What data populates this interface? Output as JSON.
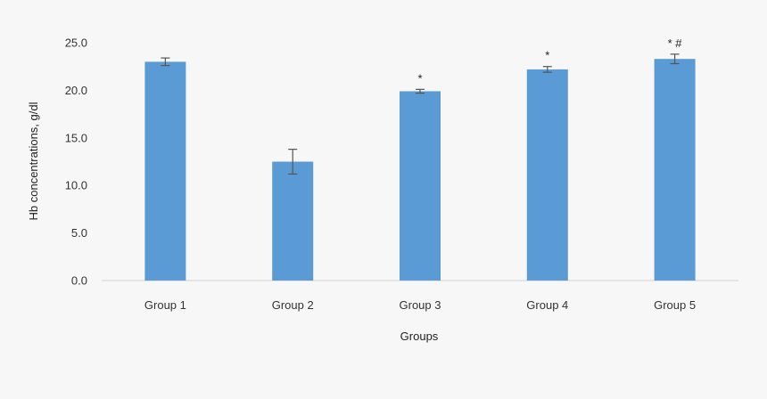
{
  "chart_data": {
    "type": "bar",
    "categories": [
      "Group 1",
      "Group 2",
      "Group 3",
      "Group 4",
      "Group 5"
    ],
    "values": [
      23.0,
      12.5,
      19.9,
      22.2,
      23.3
    ],
    "errors": [
      0.4,
      1.3,
      0.2,
      0.3,
      0.5
    ],
    "annotations": [
      "",
      "",
      "*",
      "*",
      "* #"
    ],
    "xlabel": "Groups",
    "ylabel": "Hb concentrations, g/dl",
    "ylim": [
      0,
      25
    ],
    "yticks": [
      "0.0",
      "5.0",
      "10.0",
      "15.0",
      "20.0",
      "25.0"
    ],
    "grid": false,
    "bar_color": "#5b9bd5",
    "error_bar_color": "#555555"
  }
}
